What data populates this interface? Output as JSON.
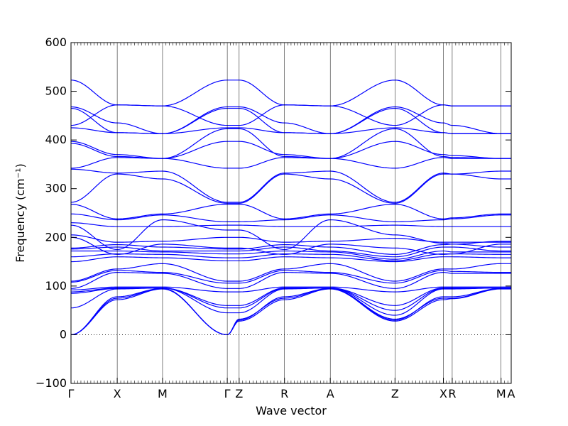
{
  "chart_data": {
    "type": "line",
    "title": "",
    "xlabel": "Wave vector",
    "ylabel": "Frequency (cm⁻¹)",
    "ylim": [
      -100,
      600
    ],
    "yticks": [
      -100,
      0,
      100,
      200,
      300,
      400,
      500,
      600
    ],
    "ytick_labels": [
      "−100",
      "0",
      "100",
      "200",
      "300",
      "400",
      "500",
      "600"
    ],
    "xlim": [
      0,
      100
    ],
    "path_points": [
      {
        "label": "Γ",
        "x": 0
      },
      {
        "label": "X",
        "x": 10.5
      },
      {
        "label": "M",
        "x": 20.8
      },
      {
        "label": "Γ",
        "x": 35.5
      },
      {
        "label": "Z",
        "x": 38.2
      },
      {
        "label": "R",
        "x": 48.5
      },
      {
        "label": "A",
        "x": 58.9
      },
      {
        "label": "Z",
        "x": 73.6
      },
      {
        "label": "X",
        "x": 84.6
      },
      {
        "label": "R",
        "x": 86.6
      },
      {
        "label": "M",
        "x": 97.7
      },
      {
        "label": "A",
        "x": 100
      }
    ],
    "zero_line": {
      "y": 0,
      "style": "dotted"
    },
    "line_color": "#0000ff",
    "series": [
      {
        "x": [
          0,
          10.5,
          20.8,
          35.5,
          38.2,
          48.5,
          58.9,
          73.6,
          84.6,
          86.6,
          97.7,
          100
        ],
        "y": [
          523,
          472,
          470,
          523,
          523,
          472,
          470,
          523,
          472,
          470,
          470,
          470
        ]
      },
      {
        "x": [
          0,
          10.5,
          20.8,
          35.5,
          38.2,
          48.5,
          58.9,
          73.6,
          84.6,
          86.6,
          97.7,
          100
        ],
        "y": [
          468,
          435,
          413,
          468,
          468,
          435,
          413,
          468,
          435,
          430,
          413,
          413
        ]
      },
      {
        "x": [
          0,
          10.5,
          20.8,
          35.5,
          38.2,
          48.5,
          58.9,
          73.6,
          84.6,
          86.6,
          97.7,
          100
        ],
        "y": [
          465,
          415,
          413,
          465,
          465,
          415,
          413,
          465,
          415,
          413,
          413,
          413
        ]
      },
      {
        "x": [
          0,
          10.5,
          20.8,
          35.5,
          38.2,
          48.5,
          58.9,
          73.6,
          84.6,
          86.6,
          97.7,
          100
        ],
        "y": [
          430,
          472,
          470,
          430,
          430,
          472,
          470,
          430,
          472,
          470,
          470,
          470
        ]
      },
      {
        "x": [
          0,
          10.5,
          20.8,
          35.5,
          38.2,
          48.5,
          58.9,
          73.6,
          84.6,
          86.6,
          97.7,
          100
        ],
        "y": [
          425,
          415,
          413,
          425,
          425,
          415,
          413,
          425,
          415,
          413,
          413,
          413
        ]
      },
      {
        "x": [
          0,
          10.5,
          20.8,
          35.5,
          38.2,
          48.5,
          58.9,
          73.6,
          84.6,
          86.6,
          97.7,
          100
        ],
        "y": [
          397,
          370,
          362,
          397,
          397,
          370,
          362,
          397,
          370,
          368,
          362,
          362
        ]
      },
      {
        "x": [
          0,
          10.5,
          20.8,
          35.5,
          38.2,
          48.5,
          58.9,
          73.6,
          84.6,
          86.6,
          97.7,
          100
        ],
        "y": [
          393,
          366,
          362,
          423,
          423,
          366,
          362,
          423,
          366,
          364,
          362,
          362
        ]
      },
      {
        "x": [
          0,
          10.5,
          20.8,
          35.5,
          38.2,
          48.5,
          58.9,
          73.6,
          84.6,
          86.6,
          97.7,
          100
        ],
        "y": [
          342,
          364,
          362,
          342,
          342,
          364,
          362,
          342,
          364,
          362,
          362,
          362
        ]
      },
      {
        "x": [
          0,
          10.5,
          20.8,
          35.5,
          38.2,
          48.5,
          58.9,
          73.6,
          84.6,
          86.6,
          97.7,
          100
        ],
        "y": [
          340,
          332,
          336,
          272,
          272,
          332,
          336,
          272,
          332,
          330,
          336,
          336
        ]
      },
      {
        "x": [
          0,
          10.5,
          20.8,
          35.5,
          38.2,
          48.5,
          58.9,
          73.6,
          84.6,
          86.6,
          97.7,
          100
        ],
        "y": [
          272,
          330,
          320,
          270,
          270,
          330,
          320,
          270,
          330,
          330,
          320,
          320
        ]
      },
      {
        "x": [
          0,
          10.5,
          20.8,
          35.5,
          38.2,
          48.5,
          58.9,
          73.6,
          84.6,
          86.6,
          97.7,
          100
        ],
        "y": [
          268,
          238,
          248,
          268,
          268,
          238,
          248,
          268,
          238,
          240,
          248,
          248
        ]
      },
      {
        "x": [
          0,
          10.5,
          20.8,
          35.5,
          38.2,
          48.5,
          58.9,
          73.6,
          84.6,
          86.6,
          97.7,
          100
        ],
        "y": [
          248,
          236,
          246,
          232,
          232,
          236,
          246,
          232,
          236,
          238,
          246,
          246
        ]
      },
      {
        "x": [
          0,
          10.5,
          20.8,
          35.5,
          38.2,
          48.5,
          58.9,
          73.6,
          84.6,
          86.6,
          97.7,
          100
        ],
        "y": [
          230,
          222,
          222,
          225,
          225,
          222,
          222,
          225,
          222,
          222,
          222,
          222
        ]
      },
      {
        "x": [
          0,
          10.5,
          20.8,
          35.5,
          38.2,
          48.5,
          58.9,
          73.6,
          84.6,
          86.6,
          97.7,
          100
        ],
        "y": [
          225,
          175,
          236,
          215,
          215,
          175,
          236,
          205,
          188,
          186,
          192,
          192
        ]
      },
      {
        "x": [
          0,
          10.5,
          20.8,
          35.5,
          38.2,
          48.5,
          58.9,
          73.6,
          84.6,
          86.6,
          97.7,
          100
        ],
        "y": [
          205,
          190,
          192,
          200,
          200,
          190,
          192,
          198,
          190,
          190,
          190,
          190
        ]
      },
      {
        "x": [
          0,
          10.5,
          20.8,
          35.5,
          38.2,
          48.5,
          58.9,
          73.6,
          84.6,
          86.6,
          97.7,
          100
        ],
        "y": [
          200,
          165,
          186,
          178,
          178,
          165,
          186,
          178,
          165,
          166,
          186,
          186
        ]
      },
      {
        "x": [
          0,
          10.5,
          20.8,
          35.5,
          38.2,
          48.5,
          58.9,
          73.6,
          84.6,
          86.6,
          97.7,
          100
        ],
        "y": [
          178,
          185,
          180,
          176,
          176,
          185,
          180,
          165,
          185,
          186,
          180,
          180
        ]
      },
      {
        "x": [
          0,
          10.5,
          20.8,
          35.5,
          38.2,
          48.5,
          58.9,
          73.6,
          84.6,
          86.6,
          97.7,
          100
        ],
        "y": [
          176,
          180,
          172,
          172,
          172,
          180,
          172,
          160,
          180,
          180,
          172,
          172
        ]
      },
      {
        "x": [
          0,
          10.5,
          20.8,
          35.5,
          38.2,
          48.5,
          58.9,
          73.6,
          84.6,
          86.6,
          97.7,
          100
        ],
        "y": [
          172,
          172,
          170,
          166,
          166,
          172,
          170,
          155,
          172,
          170,
          170,
          170
        ]
      },
      {
        "x": [
          0,
          10.5,
          20.8,
          35.5,
          38.2,
          48.5,
          58.9,
          73.6,
          84.6,
          86.6,
          97.7,
          100
        ],
        "y": [
          160,
          166,
          165,
          158,
          158,
          166,
          165,
          152,
          166,
          166,
          165,
          165
        ]
      },
      {
        "x": [
          0,
          10.5,
          20.8,
          35.5,
          38.2,
          48.5,
          58.9,
          73.6,
          84.6,
          86.6,
          97.7,
          100
        ],
        "y": [
          150,
          160,
          158,
          152,
          152,
          160,
          158,
          150,
          160,
          160,
          158,
          158
        ]
      },
      {
        "x": [
          0,
          10.5,
          20.8,
          35.5,
          38.2,
          48.5,
          58.9,
          73.6,
          84.6,
          86.6,
          97.7,
          100
        ],
        "y": [
          110,
          135,
          146,
          110,
          110,
          135,
          146,
          110,
          135,
          135,
          146,
          146
        ]
      },
      {
        "x": [
          0,
          10.5,
          20.8,
          35.5,
          38.2,
          48.5,
          58.9,
          73.6,
          84.6,
          86.6,
          97.7,
          100
        ],
        "y": [
          108,
          132,
          128,
          106,
          106,
          132,
          128,
          106,
          132,
          130,
          128,
          128
        ]
      },
      {
        "x": [
          0,
          10.5,
          20.8,
          35.5,
          38.2,
          48.5,
          58.9,
          73.6,
          84.6,
          86.6,
          97.7,
          100
        ],
        "y": [
          95,
          128,
          126,
          95,
          95,
          128,
          126,
          95,
          128,
          126,
          126,
          126
        ]
      },
      {
        "x": [
          0,
          10.5,
          20.8,
          35.5,
          38.2,
          48.5,
          58.9,
          73.6,
          84.6,
          86.6,
          97.7,
          100
        ],
        "y": [
          92,
          98,
          98,
          88,
          88,
          98,
          98,
          88,
          98,
          98,
          98,
          98
        ]
      },
      {
        "x": [
          0,
          10.5,
          20.8,
          35.5,
          38.2,
          48.5,
          58.9,
          73.6,
          84.6,
          86.6,
          97.7,
          100
        ],
        "y": [
          88,
          96,
          96,
          60,
          60,
          96,
          96,
          60,
          96,
          96,
          96,
          96
        ]
      },
      {
        "x": [
          0,
          10.5,
          20.8,
          35.5,
          38.2,
          48.5,
          58.9,
          73.6,
          84.6,
          86.6,
          97.7,
          100
        ],
        "y": [
          85,
          95,
          96,
          55,
          55,
          95,
          96,
          50,
          95,
          95,
          96,
          96
        ]
      },
      {
        "x": [
          0,
          10.5,
          20.8,
          35.5,
          38.2,
          48.5,
          58.9,
          73.6,
          84.6,
          86.6,
          97.7,
          100
        ],
        "y": [
          55,
          94,
          96,
          45,
          45,
          94,
          96,
          40,
          94,
          94,
          96,
          96
        ]
      },
      {
        "x": [
          0,
          10.5,
          20.8,
          35.5,
          38.2,
          48.5,
          58.9,
          73.6,
          84.6,
          86.6,
          97.7,
          100
        ],
        "y": [
          0,
          78,
          95,
          0,
          30,
          78,
          95,
          30,
          78,
          78,
          95,
          95
        ]
      },
      {
        "x": [
          0,
          10.5,
          20.8,
          35.5,
          38.2,
          48.5,
          58.9,
          73.6,
          84.6,
          86.6,
          97.7,
          100
        ],
        "y": [
          0,
          75,
          95,
          0,
          32,
          75,
          95,
          32,
          75,
          75,
          95,
          95
        ]
      },
      {
        "x": [
          0,
          10.5,
          20.8,
          35.5,
          38.2,
          48.5,
          58.9,
          73.6,
          84.6,
          86.6,
          97.7,
          100
        ],
        "y": [
          0,
          72,
          94,
          0,
          28,
          72,
          94,
          28,
          72,
          74,
          94,
          94
        ]
      }
    ]
  }
}
